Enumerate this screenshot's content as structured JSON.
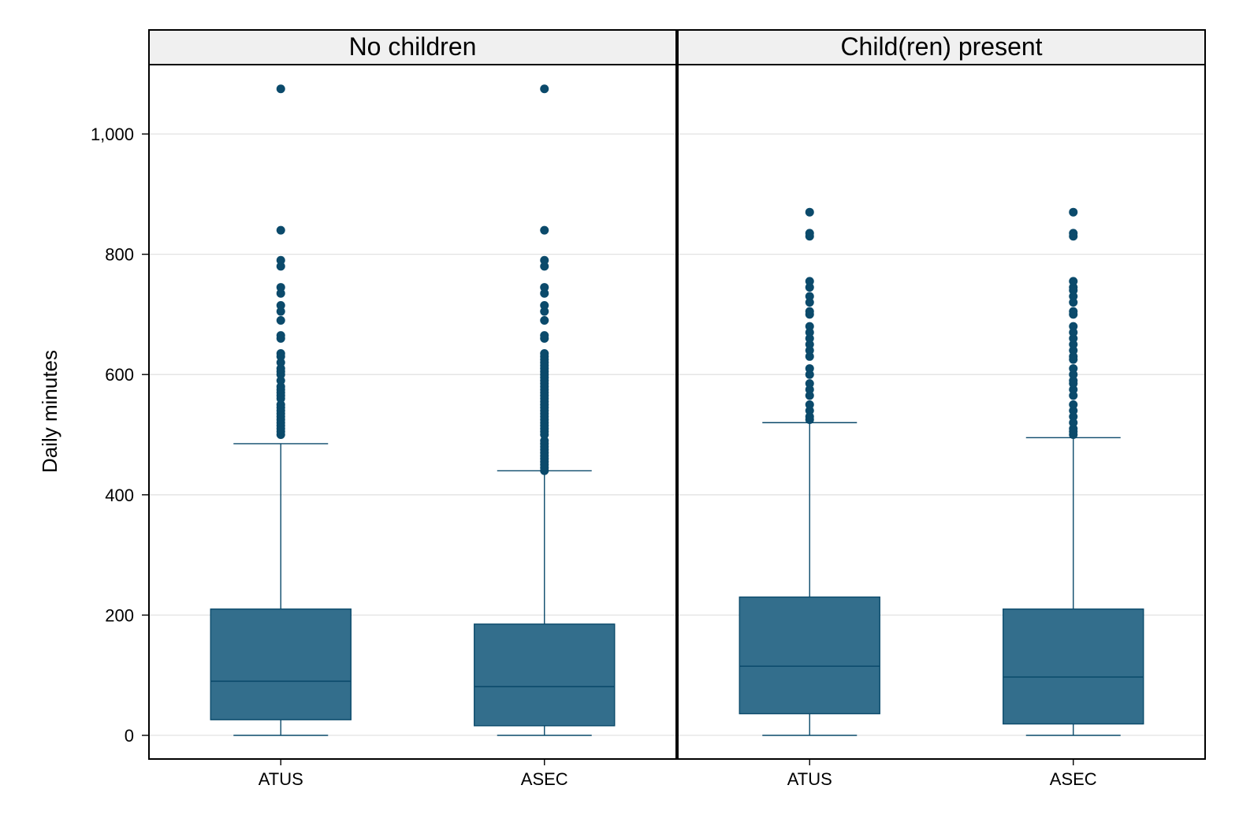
{
  "chart_data": {
    "type": "boxplot",
    "ylabel": "Daily minutes",
    "ylim": [
      -40,
      1120
    ],
    "y_ticks": [
      0,
      200,
      400,
      600,
      800,
      1000
    ],
    "y_tick_labels": [
      "0",
      "200",
      "400",
      "600",
      "800",
      "1,000"
    ],
    "grid": true,
    "colors": {
      "box_fill": "#336e8c",
      "box_stroke": "#0b4a6b",
      "outlier": "#0b4a6b",
      "strip_bg": "#f0f0f0",
      "grid": "#e2e2e2"
    },
    "panels": [
      {
        "label": "No children",
        "groups": [
          {
            "name": "ATUS",
            "whisker_low": 0,
            "q1": 26,
            "median": 90,
            "q3": 210,
            "whisker_high": 485,
            "outliers": [
              500,
              505,
              510,
              515,
              520,
              525,
              530,
              535,
              540,
              545,
              550,
              560,
              565,
              570,
              575,
              580,
              590,
              600,
              605,
              610,
              620,
              630,
              635,
              660,
              665,
              690,
              705,
              715,
              735,
              745,
              780,
              790,
              840,
              1075
            ]
          },
          {
            "name": "ASEC",
            "whisker_low": 0,
            "q1": 16,
            "median": 81,
            "q3": 185,
            "whisker_high": 440,
            "outliers": [
              440,
              445,
              450,
              455,
              460,
              465,
              470,
              475,
              480,
              485,
              490,
              500,
              505,
              510,
              515,
              520,
              525,
              530,
              535,
              540,
              545,
              550,
              555,
              560,
              565,
              570,
              575,
              580,
              585,
              590,
              595,
              600,
              605,
              610,
              615,
              620,
              625,
              630,
              635,
              660,
              665,
              690,
              705,
              715,
              735,
              745,
              780,
              790,
              840,
              1075
            ]
          }
        ]
      },
      {
        "label": "Child(ren) present",
        "groups": [
          {
            "name": "ATUS",
            "whisker_low": 0,
            "q1": 36,
            "median": 115,
            "q3": 230,
            "whisker_high": 520,
            "outliers": [
              525,
              530,
              540,
              550,
              565,
              575,
              585,
              600,
              610,
              630,
              640,
              650,
              660,
              670,
              680,
              700,
              705,
              720,
              730,
              745,
              755,
              830,
              835,
              870
            ]
          },
          {
            "name": "ASEC",
            "whisker_low": 0,
            "q1": 19,
            "median": 97,
            "q3": 210,
            "whisker_high": 495,
            "outliers": [
              500,
              505,
              510,
              520,
              530,
              540,
              550,
              565,
              575,
              585,
              590,
              600,
              610,
              625,
              630,
              640,
              650,
              660,
              670,
              680,
              700,
              705,
              720,
              730,
              740,
              745,
              755,
              830,
              835,
              870
            ]
          }
        ]
      }
    ]
  }
}
